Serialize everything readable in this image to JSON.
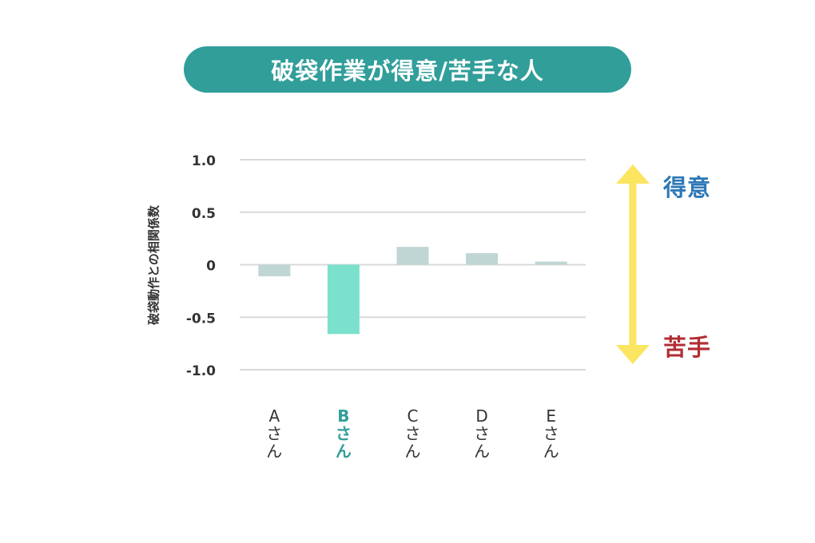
{
  "title": "破袋作業が得意/苦手な人",
  "chart_data": {
    "type": "bar",
    "categories": [
      "Aさん",
      "Bさん",
      "Cさん",
      "Dさん",
      "Eさん"
    ],
    "values": [
      -0.11,
      -0.66,
      0.17,
      0.11,
      0.03
    ],
    "highlight_category": "Bさん",
    "ylabel": "破袋動作との相関係数",
    "ylim": [
      -1.0,
      1.0
    ],
    "yticks": [
      "1.0",
      "0.5",
      "0",
      "-0.5",
      "-1.0"
    ],
    "grid": true,
    "legend": "none"
  },
  "scale_arrow": {
    "top_label": "得意",
    "bottom_label": "苦手"
  },
  "colors": {
    "title_bg": "#319e9a",
    "bar": "#bfd6d4",
    "bar_highlight": "#7be1cd",
    "arrow": "#fbe561",
    "top_label": "#2d78b6",
    "bottom_label": "#b22d33",
    "highlight_text": "#319e9a"
  }
}
